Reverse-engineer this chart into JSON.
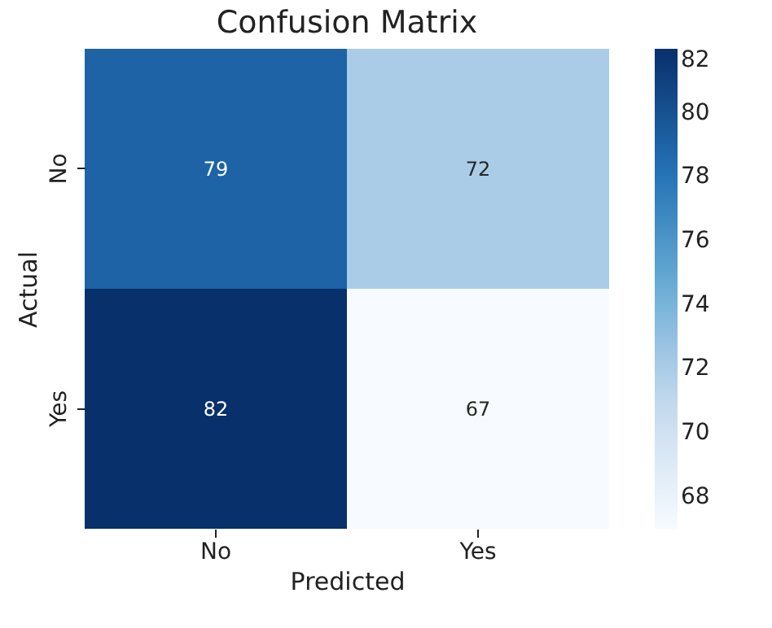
{
  "chart_data": {
    "type": "heatmap",
    "title": "Confusion Matrix",
    "xlabel": "Predicted",
    "ylabel": "Actual",
    "categories": [
      "No",
      "Yes"
    ],
    "y_categories": [
      "No",
      "Yes"
    ],
    "cells": [
      [
        79,
        72
      ],
      [
        82,
        67
      ]
    ],
    "clim": [
      67,
      82
    ],
    "cticks": [
      68,
      70,
      72,
      74,
      76,
      78,
      80,
      82
    ],
    "data_labels": true
  }
}
